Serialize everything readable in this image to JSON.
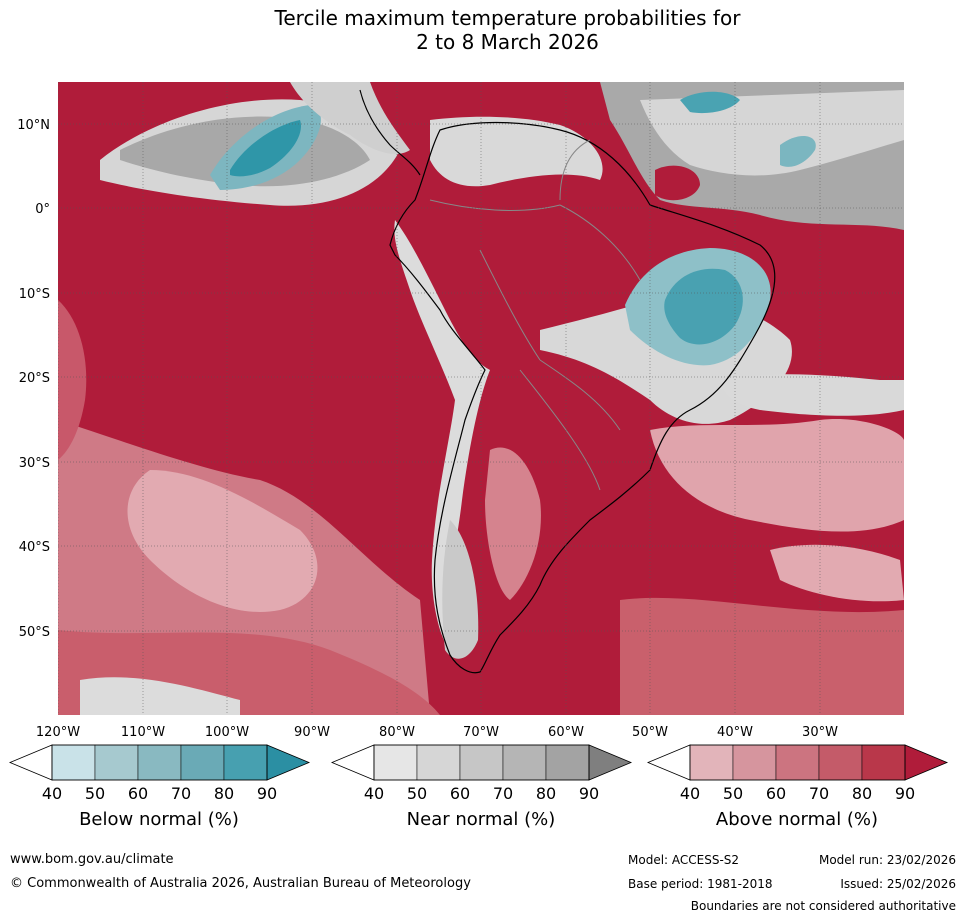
{
  "title": {
    "line1": "Tercile maximum temperature probabilities for",
    "line2": "2 to 8 March 2026"
  },
  "map": {
    "lat_labels": [
      "10°N",
      "0°",
      "10°S",
      "20°S",
      "30°S",
      "40°S",
      "50°S"
    ],
    "lon_labels": [
      "120°W",
      "110°W",
      "100°W",
      "90°W",
      "80°W",
      "70°W",
      "60°W",
      "50°W",
      "40°W",
      "30°W"
    ],
    "lat_range": [
      -60,
      15
    ],
    "lon_range": [
      -120,
      -20
    ]
  },
  "colorbars": [
    {
      "id": "below",
      "title": "Below normal (%)",
      "ticks": [
        "40",
        "50",
        "60",
        "70",
        "80",
        "90"
      ],
      "colors": [
        "#ffffff",
        "#c9e2e8",
        "#a6c9cf",
        "#89b9c1",
        "#6aaab6",
        "#47a0b0",
        "#2b8fa3"
      ]
    },
    {
      "id": "near",
      "title": "Near normal (%)",
      "ticks": [
        "40",
        "50",
        "60",
        "70",
        "80",
        "90"
      ],
      "colors": [
        "#ffffff",
        "#e6e6e6",
        "#d6d6d6",
        "#c6c6c6",
        "#b5b5b5",
        "#a3a3a3",
        "#7f7f7f"
      ]
    },
    {
      "id": "above",
      "title": "Above normal (%)",
      "ticks": [
        "40",
        "50",
        "60",
        "70",
        "80",
        "90"
      ],
      "colors": [
        "#ffffff",
        "#e2b4ba",
        "#d6959e",
        "#cc7480",
        "#c45b69",
        "#b9374a",
        "#b01c3a"
      ]
    }
  ],
  "footer": {
    "website": "www.bom.gov.au/climate",
    "copyright": "© Commonwealth of Australia 2026, Australian Bureau of Meteorology",
    "model": "Model: ACCESS-S2",
    "model_run": "Model run: 23/02/2026",
    "base_period": "Base period: 1981-2018",
    "issued": "Issued: 25/02/2026",
    "disclaimer": "Boundaries are not considered authoritative"
  },
  "palette": {
    "above_strong": "#b01c3a",
    "above_mid": "#c9606c",
    "above_light": "#de9aa3",
    "near_light": "#d9d9d9",
    "near_dark": "#a6a6a6",
    "below_mid": "#8ec0c8",
    "below_strong": "#3d9eae"
  }
}
